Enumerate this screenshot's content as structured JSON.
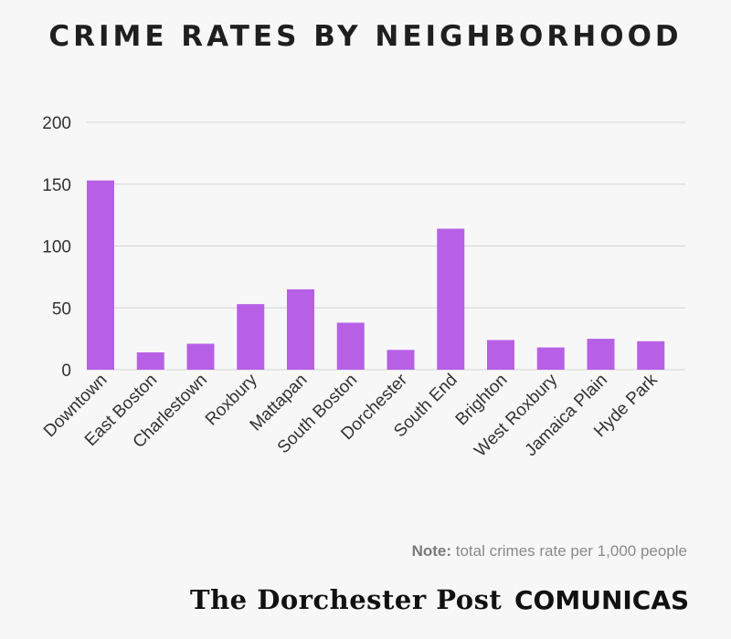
{
  "chart_data": {
    "type": "bar",
    "title": "CRIME RATES BY NEIGHBORHOOD",
    "categories": [
      "Downtown",
      "East Boston",
      "Charlestown",
      "Roxbury",
      "Mattapan",
      "South Boston",
      "Dorchester",
      "South End",
      "Brighton",
      "West Roxbury",
      "Jamaica Plain",
      "Hyde Park"
    ],
    "values": [
      153,
      14,
      21,
      53,
      65,
      38,
      16,
      114,
      24,
      18,
      25,
      23
    ],
    "ylim": [
      0,
      200
    ],
    "yticks": [
      0,
      50,
      100,
      150,
      200
    ],
    "grid": true,
    "bar_color": "#b760e6"
  },
  "note": {
    "label": "Note:",
    "text": " total crimes rate per 1,000 people"
  },
  "logos": {
    "post": "The Dorchester Post",
    "comunicas": "COMUNICAS"
  }
}
